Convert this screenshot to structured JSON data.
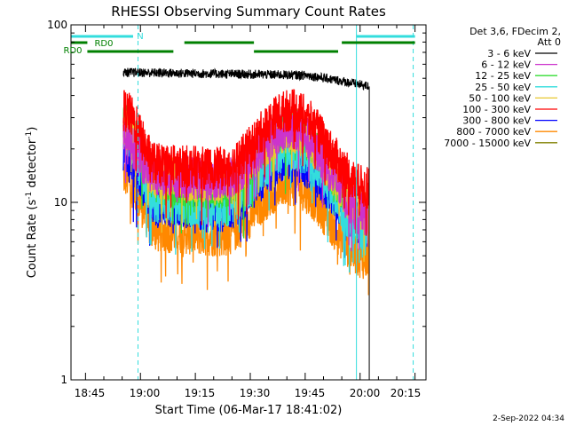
{
  "chart_data": {
    "type": "line",
    "title": "RHESSI Observing Summary Count Rates",
    "xlabel": "Start Time (06-Mar-17 18:41:02)",
    "ylabel_main": "Count Rate (s",
    "ylabel_sup1": "-1",
    "ylabel_mid": " detector",
    "ylabel_sup2": "-1",
    "ylabel_end": ")",
    "yscale": "log",
    "ylim": [
      1,
      100
    ],
    "xlim": [
      "18:41:02",
      "20:18:00"
    ],
    "x_ticks": [
      "18:45",
      "19:00",
      "19:15",
      "19:30",
      "19:45",
      "20:00",
      "20:15"
    ],
    "y_ticks": [
      "1",
      "10",
      "100"
    ],
    "legend_title_line1": "Det 3,6, FDecim 2,",
    "legend_title_line2": "Att 0",
    "date_stamp": "2-Sep-2022 04:34",
    "flag_labels": {
      "n": "N",
      "rd0_upper": "RD0",
      "rd0_lower": "RD0"
    },
    "series": [
      {
        "name": "3 - 6 keV",
        "color": "#000000",
        "profile": "flat",
        "start": 54,
        "base": 54,
        "mid": 52,
        "end": 45
      },
      {
        "name": "6 - 12 keV",
        "color": "#cc33cc",
        "profile": "wave",
        "start": 22,
        "base": 13.5,
        "peak": 26,
        "end": 8.5
      },
      {
        "name": "12 - 25 keV",
        "color": "#33dd33",
        "profile": "wave",
        "start": 28,
        "base": 12,
        "peak": 26,
        "end": 9
      },
      {
        "name": "25 - 50 keV",
        "color": "#33dddd",
        "profile": "wave",
        "start": 24,
        "base": 9.5,
        "peak": 20,
        "end": 7
      },
      {
        "name": "50 - 100 keV",
        "color": "#e8c830",
        "profile": "wave",
        "start": 26,
        "base": 13,
        "peak": 25,
        "end": 9
      },
      {
        "name": "100 - 300 keV",
        "color": "#ff0000",
        "profile": "wave",
        "start": 33,
        "base": 15.5,
        "peak": 33,
        "end": 12
      },
      {
        "name": "300 - 800 keV",
        "color": "#0000ff",
        "profile": "wave",
        "start": 19,
        "base": 9,
        "peak": 17,
        "end": 7.5
      },
      {
        "name": "800 - 7000 keV",
        "color": "#ff8800",
        "profile": "wave",
        "start": 14,
        "base": 6.5,
        "peak": 12.5,
        "end": 4.8
      },
      {
        "name": "7000 - 15000 keV",
        "color": "#808000",
        "profile": "none"
      }
    ],
    "data_span": {
      "start": "18:55:20",
      "end": "20:02:30"
    },
    "vertical_lines": [
      {
        "time": "18:41:02",
        "style": "solid",
        "color": "#33dddd"
      },
      {
        "time": "18:59:20",
        "style": "dashed",
        "color": "#33dddd"
      },
      {
        "time": "19:59:00",
        "style": "solid",
        "color": "#33dddd"
      },
      {
        "time": "20:14:30",
        "style": "dashed",
        "color": "#33dddd"
      }
    ],
    "flags": [
      {
        "row": "n",
        "color": "#33dddd",
        "segments": [
          [
            "18:41:02",
            "18:58:00"
          ],
          [
            "19:59:00",
            "20:15:00"
          ]
        ]
      },
      {
        "row": "rd0_upper",
        "color": "#008000",
        "segments": [
          [
            "18:41:02",
            "18:45:30"
          ],
          [
            "19:12:00",
            "19:31:00"
          ],
          [
            "19:55:00",
            "20:15:00"
          ]
        ]
      },
      {
        "row": "rd0_lower",
        "color": "#008000",
        "segments": [
          [
            "18:45:30",
            "19:09:00"
          ],
          [
            "19:31:00",
            "19:54:00"
          ]
        ]
      }
    ]
  }
}
